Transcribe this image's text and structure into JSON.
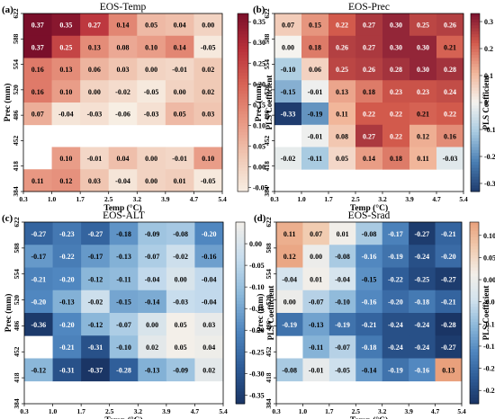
{
  "chart_data": [
    {
      "type": "heatmap",
      "panel_label": "(a)",
      "title": "EOS-Temp",
      "xlabel": "Temp (°C)",
      "ylabel": "Prec (mm)",
      "colorbar_label": "PLS Coefficient",
      "x_ticks": [
        "0.3",
        "1.0",
        "1.7",
        "2.5",
        "3.2",
        "3.9",
        "4.7",
        "5.4"
      ],
      "y_ticks": [
        "622",
        "588",
        "554",
        "520",
        "486",
        "452",
        "418",
        "384"
      ],
      "vmin": -0.06,
      "vmax": 0.37,
      "colorbar_ticks": [
        "0.35",
        "0.30",
        "0.25",
        "0.20",
        "0.15",
        "0.10",
        "0.05",
        "0.00",
        "-0.05"
      ],
      "colorbar_tick_values": [
        0.35,
        0.3,
        0.25,
        0.2,
        0.15,
        0.1,
        0.05,
        0.0,
        -0.05
      ],
      "colormap": [
        "#f7eee3",
        "#f0c7b3",
        "#e89681",
        "#d76456",
        "#b8303a",
        "#7a0f2a"
      ],
      "values": [
        [
          0.37,
          0.35,
          0.27,
          0.14,
          0.05,
          0.04,
          -0.0
        ],
        [
          0.37,
          0.25,
          0.13,
          0.08,
          0.1,
          0.14,
          -0.05
        ],
        [
          0.16,
          0.13,
          0.06,
          0.03,
          -0.0,
          -0.01,
          0.02
        ],
        [
          0.16,
          0.1,
          0.0,
          -0.02,
          -0.05,
          0.0,
          0.02
        ],
        [
          0.07,
          -0.04,
          -0.03,
          -0.06,
          -0.03,
          0.05,
          0.03
        ],
        [
          null,
          null,
          null,
          null,
          null,
          null,
          null
        ],
        [
          null,
          0.1,
          -0.01,
          0.04,
          -0.0,
          -0.01,
          0.1
        ],
        [
          0.11,
          0.12,
          0.03,
          -0.04,
          0.0,
          0.01,
          -0.05
        ]
      ]
    },
    {
      "type": "heatmap",
      "panel_label": "(b)",
      "title": "EOS-Prec",
      "xlabel": "Temp (°C)",
      "ylabel": "Prec (mm)",
      "colorbar_label": "PLS Coefficient",
      "x_ticks": [
        "0.3",
        "1.0",
        "1.7",
        "2.5",
        "3.2",
        "3.9",
        "4.7",
        "5.4"
      ],
      "y_ticks": [
        "622",
        "588",
        "554",
        "520",
        "486",
        "452",
        "418",
        "384"
      ],
      "vmin": -0.33,
      "vmax": 0.33,
      "colorbar_ticks": [
        "0.3",
        "0.2",
        "0.1",
        "0",
        "-0.1",
        "-0.2",
        "-0.3"
      ],
      "colorbar_tick_values": [
        0.3,
        0.2,
        0.1,
        0,
        -0.1,
        -0.2,
        -0.3
      ],
      "colormap": [
        "#1f3c6e",
        "#4a7fb4",
        "#a9cbe1",
        "#f5f3ef",
        "#f1b69a",
        "#d25a4c",
        "#7c1230"
      ],
      "values": [
        [
          0.07,
          0.15,
          0.22,
          0.27,
          0.3,
          0.25,
          0.26
        ],
        [
          -0.0,
          0.18,
          0.26,
          0.27,
          0.3,
          0.3,
          0.21
        ],
        [
          -0.1,
          0.06,
          0.25,
          0.26,
          0.28,
          0.3,
          0.28
        ],
        [
          -0.15,
          -0.01,
          0.13,
          0.18,
          0.23,
          0.23,
          0.24
        ],
        [
          -0.33,
          -0.19,
          0.11,
          0.22,
          0.22,
          0.21,
          0.22
        ],
        [
          null,
          -0.01,
          0.08,
          0.27,
          0.22,
          0.12,
          0.16
        ],
        [
          -0.02,
          -0.11,
          0.05,
          0.14,
          0.18,
          0.11,
          -0.03
        ],
        [
          null,
          null,
          null,
          null,
          null,
          null,
          null
        ]
      ]
    },
    {
      "type": "heatmap",
      "panel_label": "(c)",
      "title": "EOS-ALT",
      "xlabel": "Temp (°C)",
      "ylabel": "Prec (mm)",
      "colorbar_label": "PLS Coefficient",
      "x_ticks": [
        "0.3",
        "1.0",
        "1.7",
        "2.5",
        "3.2",
        "3.9",
        "4.7",
        "5.4"
      ],
      "y_ticks": [
        "622",
        "588",
        "554",
        "520",
        "486",
        "452",
        "418",
        "384"
      ],
      "vmin": -0.37,
      "vmax": 0.05,
      "colorbar_ticks": [
        "0.00",
        "-0.05",
        "-0.10",
        "-0.15",
        "-0.20",
        "-0.25",
        "-0.30",
        "-0.35"
      ],
      "colorbar_tick_values": [
        0.0,
        -0.05,
        -0.1,
        -0.15,
        -0.2,
        -0.25,
        -0.3,
        -0.35
      ],
      "colormap": [
        "#1a3565",
        "#2e5c97",
        "#4f86bf",
        "#8cb8da",
        "#c6dced",
        "#f3efe9"
      ],
      "values": [
        [
          -0.27,
          -0.23,
          -0.27,
          -0.18,
          -0.09,
          -0.08,
          -0.2
        ],
        [
          -0.17,
          -0.22,
          -0.17,
          -0.13,
          -0.07,
          -0.02,
          -0.16
        ],
        [
          -0.21,
          -0.2,
          -0.12,
          -0.11,
          -0.04,
          -0.0,
          -0.04
        ],
        [
          -0.2,
          -0.13,
          -0.02,
          -0.15,
          -0.14,
          -0.03,
          -0.04
        ],
        [
          -0.36,
          -0.2,
          -0.12,
          -0.07,
          0.0,
          0.05,
          0.03
        ],
        [
          null,
          -0.21,
          -0.31,
          -0.1,
          0.02,
          0.05,
          0.04
        ],
        [
          -0.12,
          -0.31,
          -0.37,
          -0.28,
          -0.13,
          -0.09,
          0.02
        ],
        [
          null,
          null,
          null,
          null,
          null,
          null,
          null
        ]
      ]
    },
    {
      "type": "heatmap",
      "panel_label": "(d)",
      "title": "EOS-Srad",
      "xlabel": "Temp (°C)",
      "ylabel": "Prec (mm)",
      "colorbar_label": "PLS Coefficient",
      "x_ticks": [
        "0.3",
        "1.0",
        "1.7",
        "2.5",
        "3.2",
        "3.9",
        "4.7",
        "5.4"
      ],
      "y_ticks": [
        "622",
        "588",
        "554",
        "520",
        "486",
        "452",
        "418",
        "384"
      ],
      "vmin": -0.28,
      "vmax": 0.13,
      "colorbar_ticks": [
        "0.10",
        "0.05",
        "0.00",
        "-0.05",
        "-0.10",
        "-0.15",
        "-0.20",
        "-0.25"
      ],
      "colorbar_tick_values": [
        0.1,
        0.05,
        0.0,
        -0.05,
        -0.1,
        -0.15,
        -0.2,
        -0.25
      ],
      "colormap": [
        "#1a3565",
        "#2e5c97",
        "#4f86bf",
        "#8cb8da",
        "#d3e3ee",
        "#f3efe9",
        "#f1cbb0",
        "#e9a07c"
      ],
      "values": [
        [
          0.11,
          0.07,
          0.01,
          -0.08,
          -0.17,
          -0.27,
          -0.21
        ],
        [
          0.12,
          -0.0,
          -0.08,
          -0.16,
          -0.19,
          -0.24,
          -0.2
        ],
        [
          -0.04,
          0.01,
          -0.04,
          -0.15,
          -0.22,
          -0.25,
          -0.27
        ],
        [
          -0.0,
          -0.07,
          -0.1,
          -0.16,
          -0.2,
          -0.18,
          -0.21
        ],
        [
          -0.19,
          -0.13,
          -0.19,
          -0.21,
          -0.24,
          -0.24,
          -0.28
        ],
        [
          null,
          -0.11,
          -0.07,
          -0.18,
          -0.24,
          -0.24,
          -0.27
        ],
        [
          -0.08,
          -0.01,
          -0.05,
          -0.14,
          -0.19,
          -0.16,
          0.13
        ],
        [
          null,
          null,
          null,
          null,
          null,
          null,
          null
        ]
      ]
    }
  ]
}
